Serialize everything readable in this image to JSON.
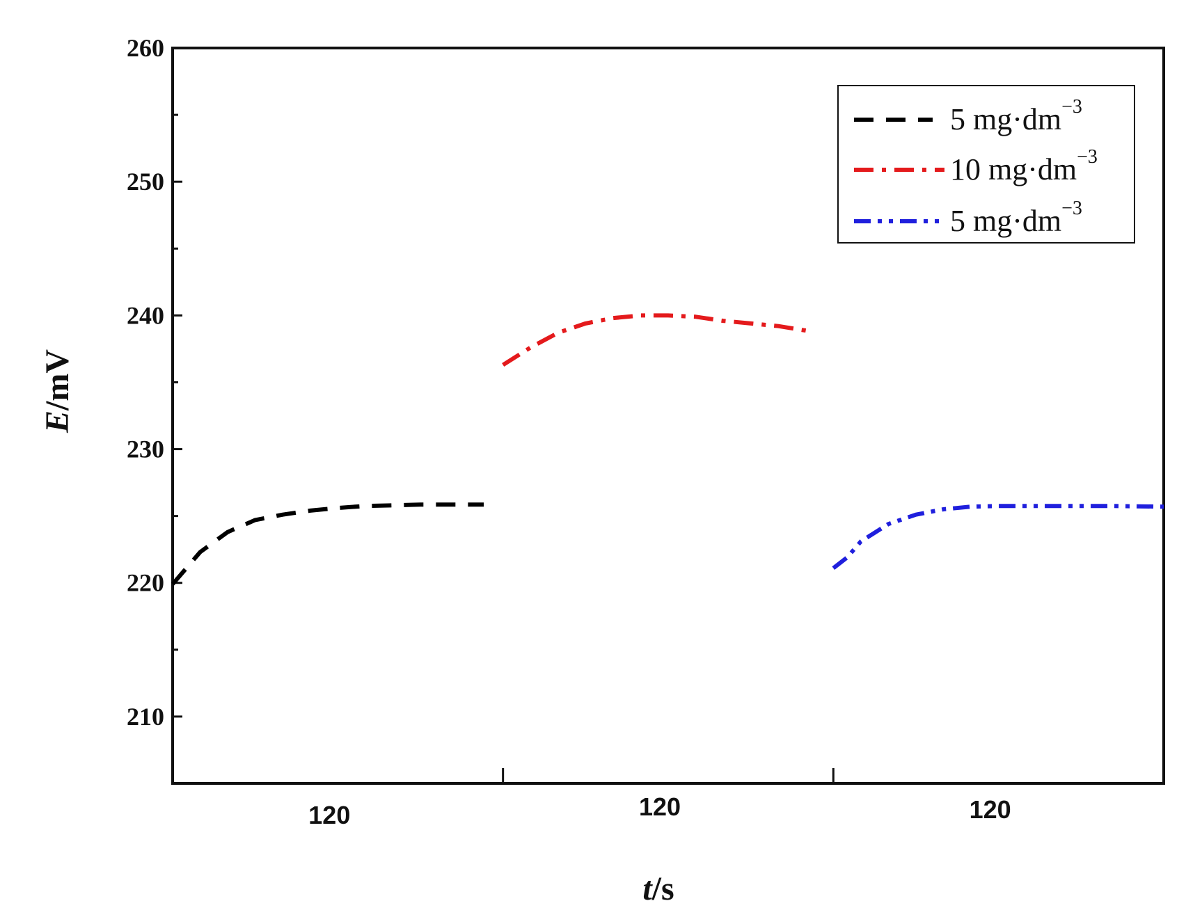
{
  "chart_data": {
    "type": "line",
    "title": "",
    "xlabel": "t/s",
    "xlabel_var": "t",
    "xlabel_unit": "/s",
    "ylabel": "E/mV",
    "ylabel_var": "E",
    "ylabel_unit": "/mV",
    "xlim": [
      0,
      360
    ],
    "ylim": [
      205,
      260
    ],
    "yticks": [
      210,
      220,
      230,
      240,
      250,
      260
    ],
    "ytick_labels": [
      "210",
      "220",
      "230",
      "240",
      "250",
      "260"
    ],
    "xsegments": [
      {
        "label": "120",
        "range": [
          0,
          120
        ]
      },
      {
        "label": "120",
        "range": [
          120,
          240
        ]
      },
      {
        "label": "120",
        "range": [
          240,
          360
        ]
      }
    ],
    "grid": false,
    "legend_position": "top-right",
    "series": [
      {
        "name": "5 mg·dm",
        "exponent": "−3",
        "color": "#000000",
        "style": "dash",
        "x": [
          0,
          10,
          20,
          30,
          40,
          50,
          60,
          70,
          80,
          90,
          100,
          113
        ],
        "y": [
          219.9,
          222.3,
          223.8,
          224.7,
          225.1,
          225.4,
          225.6,
          225.75,
          225.8,
          225.85,
          225.85,
          225.85
        ]
      },
      {
        "name": "10 mg·dm",
        "exponent": "−3",
        "color": "#e41a1c",
        "style": "dashdot",
        "x": [
          120,
          130,
          140,
          150,
          160,
          170,
          180,
          190,
          200,
          210,
          220,
          232
        ],
        "y": [
          236.3,
          237.6,
          238.7,
          239.4,
          239.8,
          240.0,
          240.0,
          239.9,
          239.6,
          239.4,
          239.2,
          238.8
        ]
      },
      {
        "name": "5 mg·dm",
        "exponent": "−3",
        "color": "#1f1fdd",
        "style": "dashdotdot",
        "x": [
          240,
          245,
          250,
          260,
          270,
          280,
          290,
          300,
          320,
          340,
          360
        ],
        "y": [
          221.1,
          221.9,
          223.1,
          224.4,
          225.1,
          225.5,
          225.7,
          225.75,
          225.75,
          225.75,
          225.7
        ]
      }
    ]
  }
}
